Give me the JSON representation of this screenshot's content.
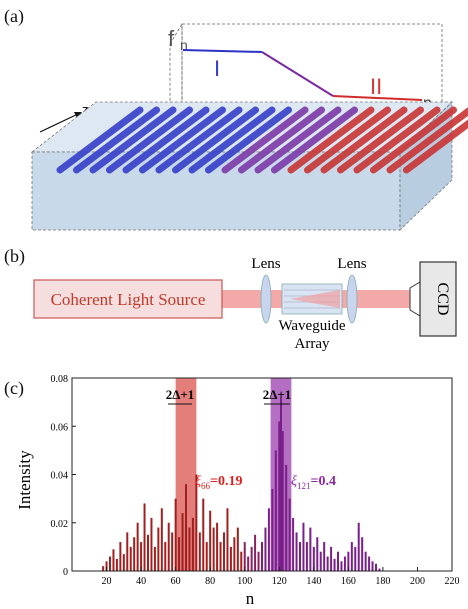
{
  "panels": {
    "a": {
      "label": "(a)",
      "fn_label": "f",
      "fn_sub": "n",
      "region1": "I",
      "region2": "II",
      "n_label": "n",
      "z_label": "z",
      "colors": {
        "blue": "#3340c8",
        "red": "#cc2b2b",
        "purple": "#8a2a9a"
      }
    },
    "b": {
      "label": "(b)",
      "source": "Coherent Light Source",
      "lens1": "Lens",
      "lens2": "Lens",
      "wg_line1": "Waveguide",
      "wg_line2": "Array",
      "ccd": "CCD"
    },
    "c": {
      "label": "(c)",
      "width_label1": "2Δ+1",
      "width_label2": "2Δ+1",
      "xi1_sub": "66",
      "xi1_val": "=0.19",
      "xi2_sub": "121",
      "xi2_val": "=0.4"
    }
  },
  "chart_data": {
    "type": "bar",
    "xlabel": "n",
    "ylabel": "Intensity",
    "xlim": [
      0,
      220
    ],
    "ylim": [
      0,
      0.08
    ],
    "xticks": [
      20,
      40,
      60,
      80,
      100,
      120,
      140,
      160,
      180,
      200,
      220
    ],
    "yticks": [
      0,
      0.02,
      0.04,
      0.06,
      0.08
    ],
    "ytick_labels": [
      "0",
      "0.02",
      "0.04",
      "0.06",
      "0.08"
    ],
    "highlight_bands": [
      {
        "center": 66,
        "halfwidth": 6,
        "color": "#d9534f"
      },
      {
        "center": 121,
        "halfwidth": 6,
        "color": "#9b3fae"
      }
    ],
    "x": [
      18,
      20,
      22,
      24,
      26,
      28,
      30,
      32,
      34,
      36,
      38,
      40,
      42,
      44,
      46,
      48,
      50,
      52,
      54,
      56,
      58,
      60,
      62,
      64,
      66,
      68,
      70,
      72,
      74,
      76,
      78,
      80,
      82,
      84,
      86,
      88,
      90,
      92,
      94,
      96,
      98,
      100,
      102,
      104,
      106,
      108,
      110,
      112,
      114,
      116,
      118,
      120,
      121,
      122,
      124,
      126,
      128,
      130,
      132,
      134,
      136,
      138,
      140,
      142,
      144,
      146,
      148,
      150,
      152,
      154,
      156,
      158,
      160,
      162,
      164,
      166,
      168,
      170,
      172,
      174,
      176,
      178
    ],
    "values": [
      0.002,
      0.004,
      0.006,
      0.009,
      0.005,
      0.012,
      0.007,
      0.016,
      0.01,
      0.014,
      0.02,
      0.012,
      0.028,
      0.015,
      0.022,
      0.01,
      0.018,
      0.026,
      0.012,
      0.02,
      0.016,
      0.03,
      0.014,
      0.024,
      0.036,
      0.018,
      0.022,
      0.04,
      0.016,
      0.03,
      0.012,
      0.025,
      0.018,
      0.02,
      0.012,
      0.016,
      0.026,
      0.01,
      0.014,
      0.018,
      0.008,
      0.012,
      0.006,
      0.01,
      0.015,
      0.008,
      0.012,
      0.018,
      0.026,
      0.034,
      0.05,
      0.062,
      0.072,
      0.058,
      0.044,
      0.03,
      0.022,
      0.016,
      0.012,
      0.02,
      0.012,
      0.018,
      0.01,
      0.014,
      0.008,
      0.012,
      0.006,
      0.01,
      0.005,
      0.008,
      0.004,
      0.006,
      0.008,
      0.012,
      0.01,
      0.02,
      0.014,
      0.008,
      0.006,
      0.004,
      0.003,
      0.001
    ]
  }
}
